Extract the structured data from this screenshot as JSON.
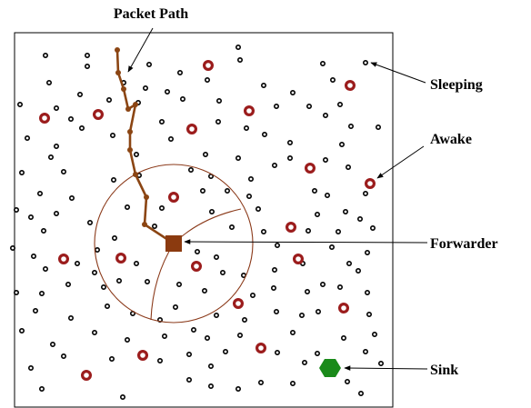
{
  "labels": {
    "packet_path": "Packet Path",
    "sleeping": "Sleeping",
    "awake": "Awake",
    "forwarder": "Forwarder",
    "sink": "Sink"
  },
  "colors": {
    "sleeping_node": "#000000",
    "awake_node": "#9b1c1c",
    "packet_path": "#8b4513",
    "forwarder": "#8b3a0f",
    "sink": "#1a8a1a",
    "range_circle": "#8b3a1a"
  },
  "icons": {
    "sleeping_node": "small-ring-icon",
    "awake_node": "large-ring-icon",
    "forwarder": "square-icon",
    "sink": "hexagon-icon"
  }
}
